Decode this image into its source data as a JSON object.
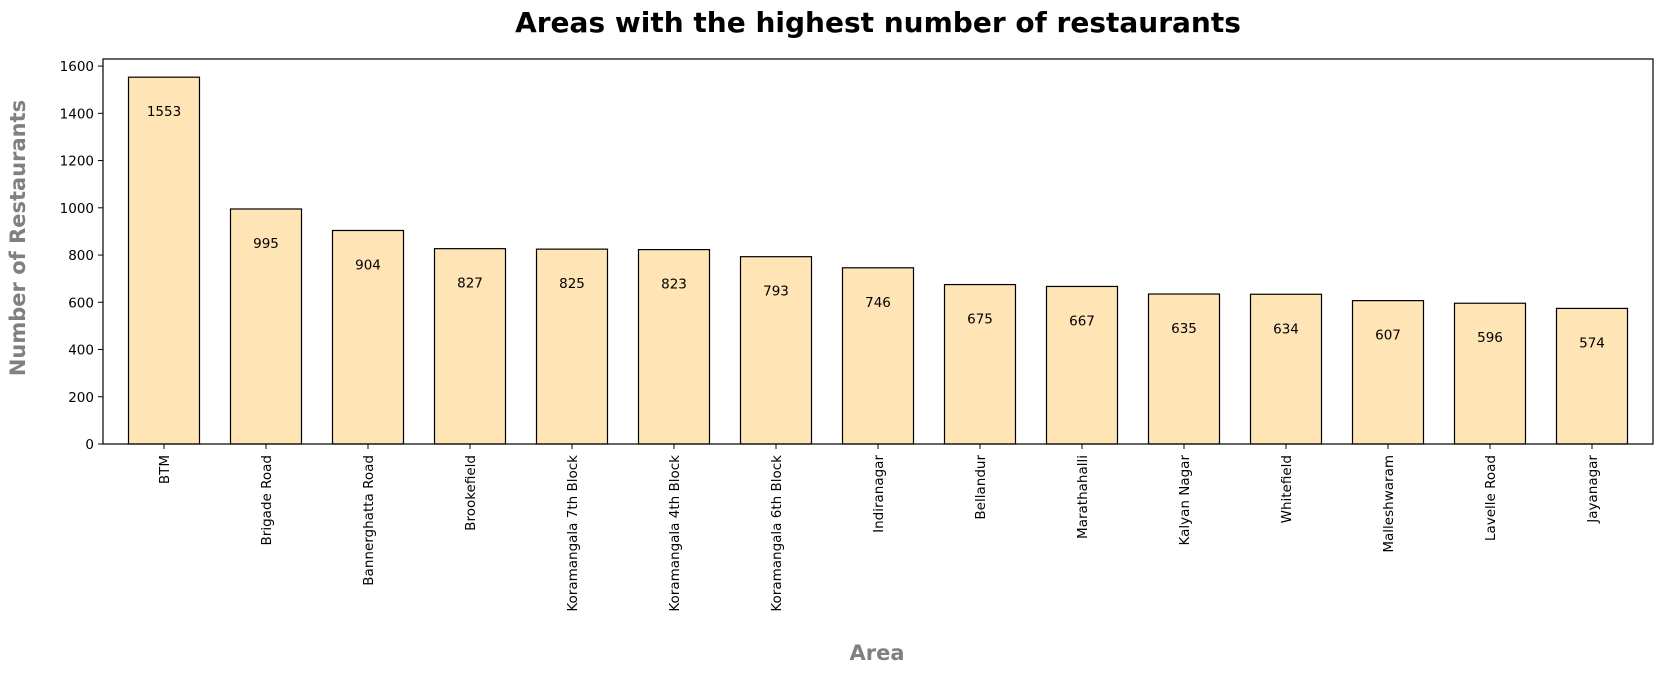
{
  "chart_data": {
    "type": "bar",
    "title": "Areas with the highest number of restaurants",
    "xlabel": "Area",
    "ylabel": "Number of Restaurants",
    "categories": [
      "BTM",
      "Brigade Road",
      "Bannerghatta Road",
      "Brookefield",
      "Koramangala 7th Block",
      "Koramangala 4th Block",
      "Koramangala 6th Block",
      "Indiranagar",
      "Bellandur",
      "Marathahalli",
      "Kalyan Nagar",
      "Whitefield",
      "Malleshwaram",
      "Lavelle Road",
      "Jayanagar"
    ],
    "values": [
      1553,
      995,
      904,
      827,
      825,
      823,
      793,
      746,
      675,
      667,
      635,
      634,
      607,
      596,
      574
    ],
    "ylim": [
      0,
      1630
    ],
    "yticks": [
      0,
      200,
      400,
      600,
      800,
      1000,
      1200,
      1400,
      1600
    ],
    "grid": false,
    "legend": false,
    "x_tick_rotation": "vertical",
    "data_labels": "inside-top",
    "colors": {
      "bar_fill": "#FFE4B5",
      "bar_edge": "#000000",
      "axis_label": "#808080",
      "title": "#000000"
    }
  }
}
